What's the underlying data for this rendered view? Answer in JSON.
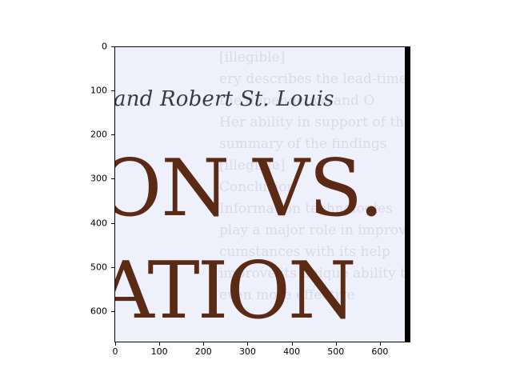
{
  "image": {
    "ghost_lines": [
      "[illegible]",
      "ery describes the lead-time f",
      "the dependence and O",
      "Her ability in support of the",
      "summary of the findings",
      "[illegible]",
      "Conclusion",
      "Information technologies",
      "play a major role in improv",
      "cumstances with its help",
      "improve its unique ability to",
      "even more effective"
    ],
    "byline": "and Robert St. Louis",
    "headline_line_1": "ON VS.",
    "headline_line_2": "ATION"
  },
  "axes": {
    "x_ticks": [
      "0",
      "100",
      "200",
      "300",
      "400",
      "500",
      "600"
    ],
    "y_ticks": [
      "0",
      "100",
      "200",
      "300",
      "400",
      "500",
      "600"
    ]
  }
}
